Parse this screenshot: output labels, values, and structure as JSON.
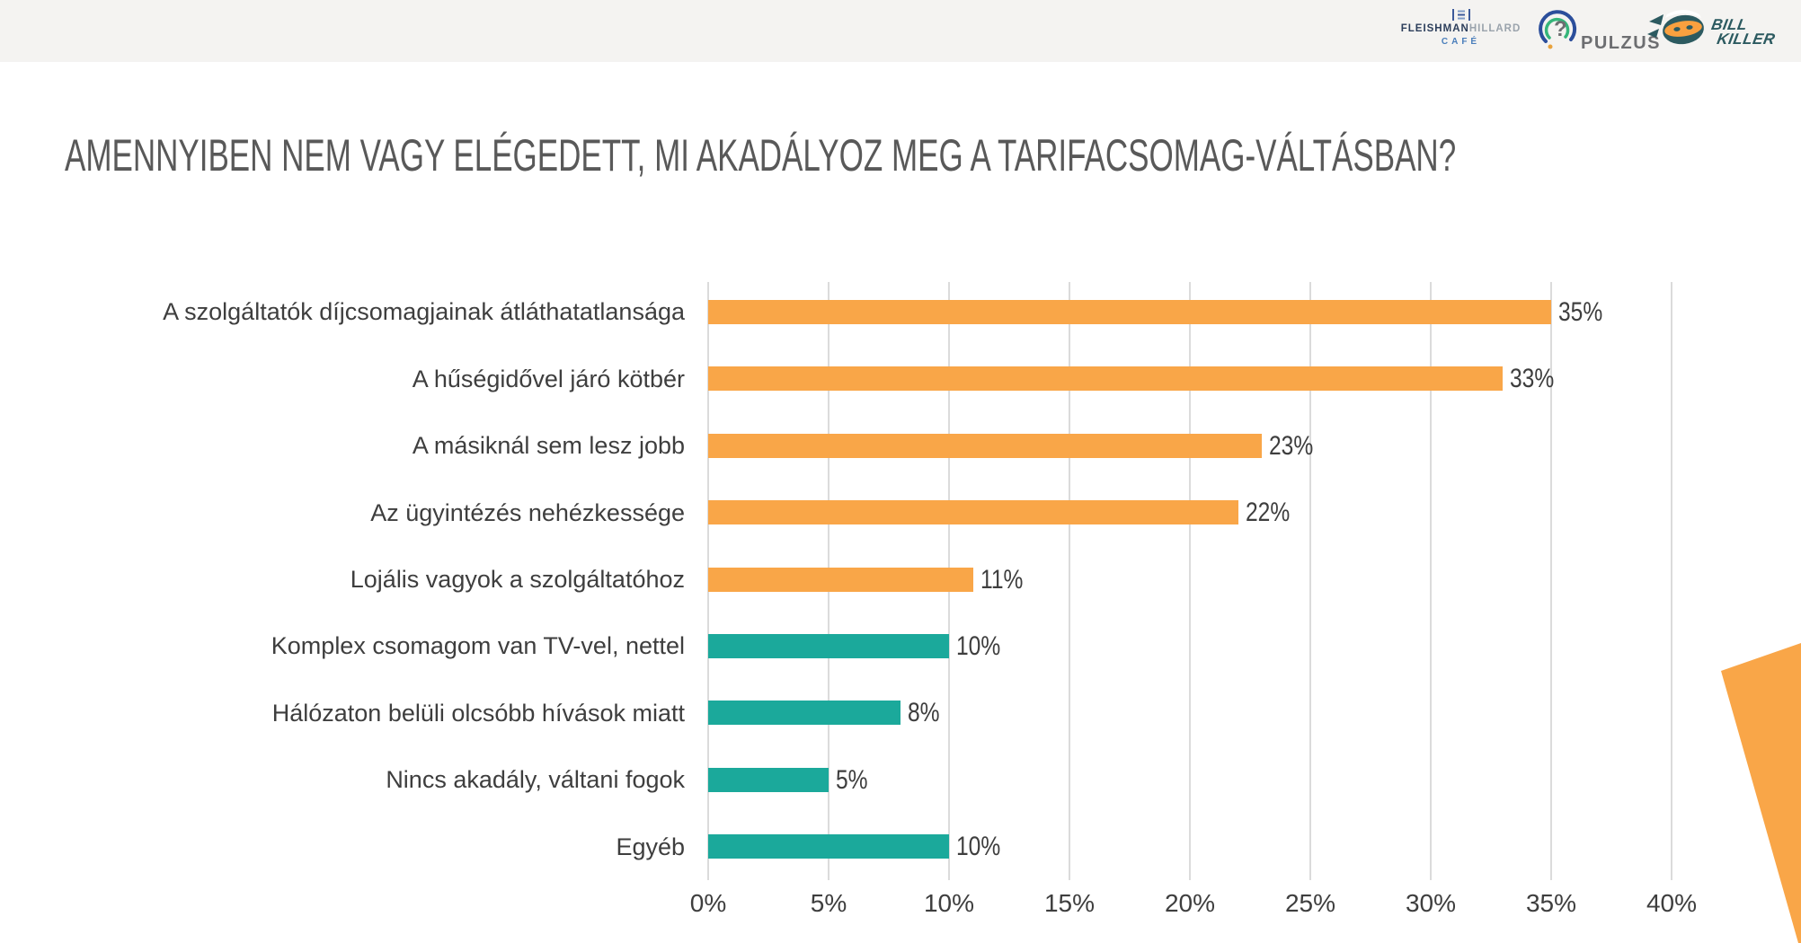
{
  "header": {
    "logos": {
      "fleishman": {
        "name_strong": "FLEISHMAN",
        "name_light": "HILLARD",
        "subtitle": "CAFÉ"
      },
      "pulzus": {
        "text": "PULZUS"
      },
      "billkiller": {
        "line1": "BILL",
        "line2": "KILLER"
      }
    }
  },
  "title": "AMENNYIBEN NEM VAGY ELÉGEDETT, MI AKADÁLYOZ MEG A TARIFACSOMAG-VÁLTÁSBAN?",
  "chart_data": {
    "type": "bar",
    "orientation": "horizontal",
    "title": "AMENNYIBEN NEM VAGY ELÉGEDETT, MI AKADÁLYOZ MEG A TARIFACSOMAG-VÁLTÁSBAN?",
    "categories": [
      "A szolgáltatók díjcsomagjainak átláthatatlansága",
      "A hűségidővel járó kötbér",
      "A másiknál sem lesz jobb",
      "Az ügyintézés nehézkessége",
      "Lojális vagyok a szolgáltatóhoz",
      "Komplex csomagom van TV-vel, nettel",
      "Hálózaton belüli olcsóbb hívások miatt",
      "Nincs akadály, váltani fogok",
      "Egyéb"
    ],
    "values": [
      35,
      33,
      23,
      22,
      11,
      10,
      8,
      5,
      10
    ],
    "value_labels": [
      "35%",
      "33%",
      "23%",
      "22%",
      "11%",
      "10%",
      "8%",
      "5%",
      "10%"
    ],
    "bar_colors": [
      "#F9A648",
      "#F9A648",
      "#F9A648",
      "#F9A648",
      "#F9A648",
      "#1BA99B",
      "#1BA99B",
      "#1BA99B",
      "#1BA99B"
    ],
    "x_ticks": [
      "0%",
      "5%",
      "10%",
      "15%",
      "20%",
      "25%",
      "30%",
      "35%",
      "40%"
    ],
    "xlim": [
      0,
      40
    ],
    "xlabel": "",
    "ylabel": "",
    "grid": true,
    "legend": "none",
    "colors": {
      "orange": "#F9A648",
      "teal": "#1BA99B"
    }
  },
  "decoration": {
    "wedge_color": "#F9A648"
  }
}
